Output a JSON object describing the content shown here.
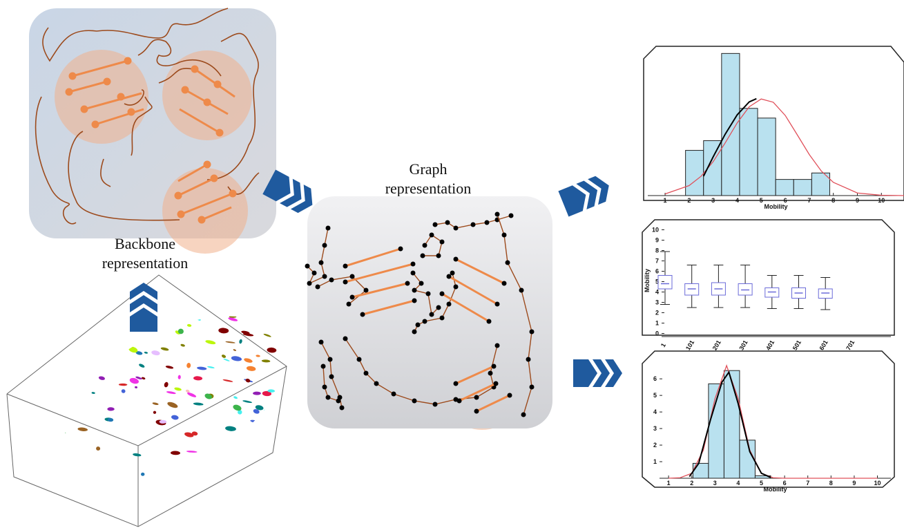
{
  "diagram": {
    "backbone_label": {
      "line1": "Backbone",
      "line2": "representation"
    },
    "graph_label": {
      "line1": "Graph",
      "line2": "representation"
    }
  },
  "chart_data": [
    {
      "type": "histogram",
      "bins": [
        1.85,
        2.6,
        3.35,
        4.1,
        4.85,
        5.6,
        6.35,
        7.1,
        7.85
      ],
      "values": [
        1.4,
        1.7,
        4.4,
        2.7,
        2.4,
        0.5,
        0.5,
        0.7
      ],
      "color": "#b9e1ef",
      "curves": [
        {
          "color": "#e0505a",
          "x": [
            1,
            2,
            2.5,
            3,
            3.5,
            4,
            4.5,
            5,
            5.5,
            6,
            6.5,
            7,
            7.5,
            8,
            9,
            10,
            11
          ],
          "values": [
            0.05,
            0.31,
            0.6,
            1.05,
            1.63,
            2.25,
            2.75,
            2.99,
            2.89,
            2.48,
            1.88,
            1.27,
            0.76,
            0.41,
            0.08,
            0.01,
            0
          ]
        },
        {
          "color": "#000000",
          "x": [
            2.6,
            3,
            3.5,
            4,
            4.5,
            4.8
          ],
          "values": [
            0.6,
            1.2,
            1.9,
            2.5,
            2.9,
            3.0
          ]
        }
      ],
      "xlim": [
        0.28,
        10.94
      ],
      "xticks": [
        1,
        2,
        3,
        4,
        5,
        6,
        7,
        8,
        9,
        10
      ],
      "ylim": [
        0,
        4.6
      ],
      "xlabel": "Mobility"
    },
    {
      "type": "box",
      "categories": [
        "1",
        "101",
        "201",
        "301",
        "401",
        "501",
        "601",
        "701"
      ],
      "whislo": [
        2.8,
        2.5,
        2.5,
        2.5,
        2.4,
        2.4,
        2.3,
        null
      ],
      "q1": [
        4.3,
        3.7,
        3.7,
        3.7,
        3.5,
        3.4,
        3.4,
        null
      ],
      "med": [
        4.8,
        4.3,
        4.3,
        4.2,
        4.0,
        3.9,
        3.9,
        null
      ],
      "q3": [
        5.6,
        4.8,
        4.9,
        4.8,
        4.4,
        4.4,
        4.3,
        null
      ],
      "whishi": [
        7.9,
        6.6,
        6.6,
        6.6,
        5.6,
        5.6,
        5.4,
        null
      ],
      "color": "#6a6ad8",
      "ylim": [
        -0.3,
        10.5
      ],
      "yticks": [
        0,
        1,
        2,
        3,
        4,
        5,
        6,
        7,
        8,
        9,
        10
      ],
      "ylabel": "Mobility"
    },
    {
      "type": "histogram",
      "bins": [
        2.05,
        2.72,
        3.39,
        4.06,
        4.73,
        5.4
      ],
      "values": [
        0.9,
        5.7,
        6.5,
        2.3,
        0.15
      ],
      "color": "#b9e1ef",
      "curves": [
        {
          "color": "#e0505a",
          "x": [
            1,
            1.5,
            2,
            2.5,
            3,
            3.5,
            4,
            4.5,
            5,
            5.5,
            6,
            10
          ],
          "values": [
            0,
            0.03,
            0.3,
            1.7,
            4.8,
            6.8,
            4.8,
            1.7,
            0.3,
            0.03,
            0,
            0
          ]
        },
        {
          "color": "#000000",
          "x": [
            1.9,
            2.3,
            2.8,
            3.3,
            3.6,
            4,
            4.5,
            5,
            5.4
          ],
          "values": [
            0.1,
            0.9,
            3.5,
            5.8,
            6.4,
            4.5,
            1.6,
            0.3,
            0.05
          ]
        }
      ],
      "xlim": [
        0.61,
        10.58
      ],
      "xticks": [
        1,
        2,
        3,
        4,
        5,
        6,
        7,
        8,
        9,
        10
      ],
      "ylim": [
        0,
        7.3
      ],
      "yticks": [
        1,
        2,
        3,
        4,
        5,
        6
      ],
      "xlabel": "Mobility"
    }
  ]
}
